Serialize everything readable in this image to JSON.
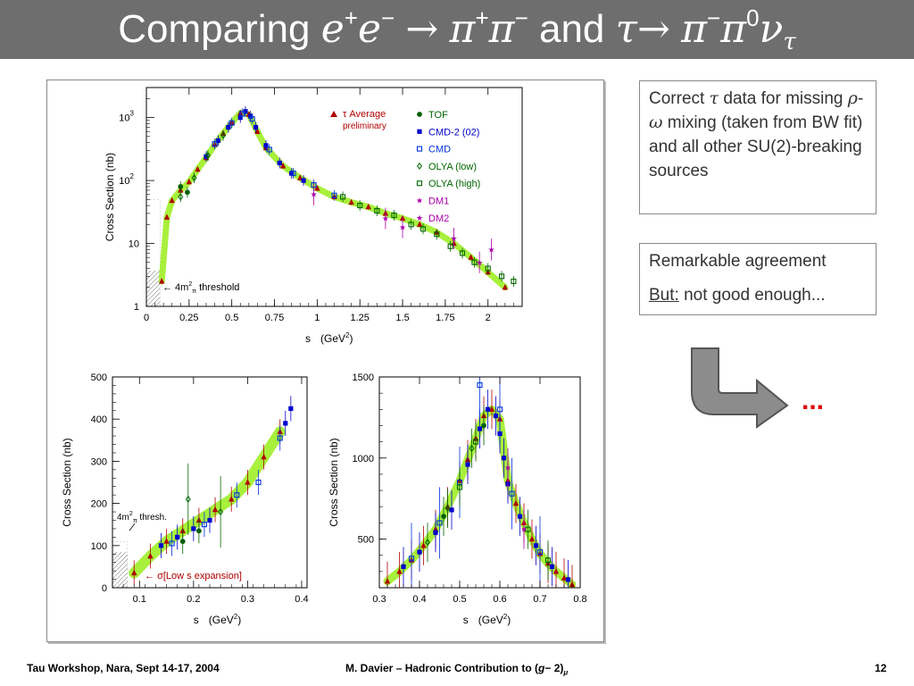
{
  "title": {
    "word1": "Comparing",
    "e": "e",
    "plus": "+",
    "minus": "−",
    "arrow": "→",
    "pi": "π",
    "and": "and",
    "tau": "τ",
    "zero": "0",
    "nu": "ν"
  },
  "note1": {
    "t1": "Correct ",
    "tau": "τ",
    "t2": " data for missing ",
    "rho": "ρ",
    "dash": "-",
    "omega": "ω",
    "t3": " mixing (taken from BW fit) and all other SU(2)-breaking sources"
  },
  "note2": {
    "line1": "Remarkable agreement",
    "but": "But:",
    "rest": " not good enough..."
  },
  "ellipsis": "...",
  "footer": {
    "left": "Tau Workshop, Nara, Sept 14-17, 2004",
    "center_text": "M. Davier – Hadronic Contribution to (",
    "g": "g",
    "minus2": "− 2)",
    "mu": "μ",
    "page": "12"
  },
  "colors": {
    "title_bar": "#6e6e6e",
    "tau": "#b00000",
    "tof": "#006000",
    "cmd2": "#0000cc",
    "cmd": "#0033dd",
    "olya_low": "#006600",
    "olya_high": "#006600",
    "dm1": "#aa00aa",
    "dm2": "#aa00aa",
    "band": "#a8f03c",
    "dots": "#e00000",
    "arrow": "#8c8c8c"
  },
  "chart_data": [
    {
      "type": "scatter",
      "ylabel": "Cross Section  (nb)",
      "xlabel_s": "s",
      "xlabel_unit": "(GeV",
      "xlabel_sup": "2",
      "xlabel_close": ")",
      "xlim": [
        0,
        2.2
      ],
      "ylim": [
        1,
        3000
      ],
      "yscale": "log",
      "xticks": [
        "0",
        "0.25",
        "0.5",
        "0.75",
        "1",
        "1.25",
        "1.5",
        "1.75",
        "2"
      ],
      "xtick_values": [
        0,
        0.25,
        0.5,
        0.75,
        1,
        1.25,
        1.5,
        1.75,
        2
      ],
      "yticks": [
        {
          "v": 1,
          "base": "1",
          "exp": ""
        },
        {
          "v": 10,
          "base": "10",
          "exp": ""
        },
        {
          "v": 100,
          "base": "10",
          "exp": "2"
        },
        {
          "v": 1000,
          "base": "10",
          "exp": "3"
        }
      ],
      "threshold_annotation": {
        "arrow": "←",
        "text1": " 4m",
        "sup": "2",
        "sub": "π",
        "text2": " threshold"
      },
      "legend": [
        {
          "marker": "tri",
          "label_pre": "τ",
          "label": " Average",
          "sub": "preliminary",
          "color": "#b00000"
        },
        {
          "marker": "dot",
          "label": "TOF",
          "color": "#006000"
        },
        {
          "marker": "sqf",
          "label": "CMD-2 (02)",
          "color": "#0000cc"
        },
        {
          "marker": "sqo",
          "label": "CMD",
          "color": "#0033dd"
        },
        {
          "marker": "dia",
          "label": "OLYA (low)",
          "color": "#006600"
        },
        {
          "marker": "sqo",
          "label": "OLYA (high)",
          "color": "#006600"
        },
        {
          "marker": "star",
          "label": "DM1",
          "color": "#aa00aa"
        },
        {
          "marker": "star",
          "label": "DM2",
          "color": "#aa00aa"
        }
      ],
      "series": [
        {
          "name": "τ Average",
          "marker": "tri",
          "color": "#b00000",
          "x": [
            0.09,
            0.12,
            0.15,
            0.2,
            0.25,
            0.3,
            0.35,
            0.4,
            0.45,
            0.5,
            0.55,
            0.6,
            0.65,
            0.7,
            0.8,
            0.9,
            1.0,
            1.1,
            1.2,
            1.3,
            1.4,
            1.5,
            1.6,
            1.7,
            1.8,
            1.9,
            2.0,
            2.1
          ],
          "y": [
            2.5,
            26,
            48,
            70,
            95,
            150,
            230,
            370,
            560,
            830,
            1180,
            1120,
            600,
            330,
            170,
            110,
            75,
            55,
            45,
            38,
            30,
            25,
            20,
            15,
            10,
            6,
            3.5,
            2
          ]
        },
        {
          "name": "CMD-2 (02)",
          "marker": "sqf",
          "color": "#0000cc",
          "x": [
            0.35,
            0.42,
            0.48,
            0.55,
            0.58,
            0.61,
            0.64,
            0.7,
            0.78,
            0.85,
            0.92
          ],
          "y": [
            240,
            430,
            700,
            1000,
            1250,
            1050,
            700,
            360,
            190,
            130,
            100
          ]
        },
        {
          "name": "CMD",
          "marker": "sqo",
          "color": "#0033dd",
          "x": [
            0.4,
            0.5,
            0.56,
            0.62,
            0.72,
            0.86,
            0.98,
            1.1
          ],
          "y": [
            380,
            820,
            1150,
            950,
            310,
            130,
            85,
            58
          ]
        },
        {
          "name": "OLYA (high)",
          "marker": "sqo",
          "color": "#006600",
          "x": [
            1.15,
            1.25,
            1.35,
            1.45,
            1.55,
            1.62,
            1.7,
            1.78,
            1.85,
            1.92,
            2.0,
            2.08,
            2.15
          ],
          "y": [
            55,
            40,
            33,
            28,
            20,
            17,
            14,
            9,
            7,
            5,
            4,
            3,
            2.5
          ]
        },
        {
          "name": "OLYA (low)",
          "marker": "dia",
          "color": "#006600",
          "x": [
            0.2,
            0.28,
            0.36,
            0.45
          ],
          "y": [
            55,
            110,
            250,
            520
          ]
        },
        {
          "name": "TOF",
          "marker": "dot",
          "color": "#006000",
          "x": [
            0.2,
            0.24
          ],
          "y": [
            80,
            65
          ]
        },
        {
          "name": "DM1",
          "marker": "star",
          "color": "#aa00aa",
          "x": [
            0.98,
            1.5,
            2.02
          ],
          "y": [
            60,
            18,
            8
          ]
        },
        {
          "name": "DM2",
          "marker": "star",
          "color": "#aa00aa",
          "x": [
            1.4,
            1.8,
            1.95
          ],
          "y": [
            25,
            12,
            5
          ]
        }
      ]
    },
    {
      "type": "scatter",
      "ylabel": "Cross Section  (nb)",
      "xlabel_s": "s",
      "xlabel_unit": "(GeV",
      "xlabel_sup": "2",
      "xlabel_close": ")",
      "xlim": [
        0.05,
        0.41
      ],
      "ylim": [
        0,
        500
      ],
      "xticks": [
        "0.1",
        "0.2",
        "0.3",
        "0.4"
      ],
      "xtick_values": [
        0.1,
        0.2,
        0.3,
        0.4
      ],
      "yticks": [
        "0",
        "100",
        "200",
        "300",
        "400",
        "500"
      ],
      "ytick_values": [
        0,
        100,
        200,
        300,
        400,
        500
      ],
      "thresh_annotation": {
        "text1": "4m",
        "sup": "2",
        "sub": "π",
        "text2": " thresh."
      },
      "sigma_annotation": {
        "arrow": "←",
        "sigma": "σ",
        "text": "[Low s expansion]"
      },
      "series": [
        {
          "name": "τ Average",
          "marker": "tri",
          "color": "#b00000",
          "x": [
            0.09,
            0.12,
            0.15,
            0.18,
            0.21,
            0.24,
            0.27,
            0.3,
            0.33,
            0.36
          ],
          "y": [
            35,
            75,
            110,
            135,
            160,
            185,
            210,
            250,
            310,
            370
          ]
        },
        {
          "name": "CMD-2 (02)",
          "marker": "sqf",
          "color": "#0000cc",
          "x": [
            0.14,
            0.17,
            0.2,
            0.23,
            0.37,
            0.38
          ],
          "y": [
            100,
            120,
            140,
            160,
            390,
            425
          ]
        },
        {
          "name": "CMD",
          "marker": "sqo",
          "color": "#0033dd",
          "x": [
            0.16,
            0.22,
            0.28,
            0.32,
            0.36
          ],
          "y": [
            105,
            150,
            220,
            250,
            355
          ]
        },
        {
          "name": "TOF",
          "marker": "dot",
          "color": "#006000",
          "x": [
            0.18,
            0.21
          ],
          "y": [
            110,
            135
          ]
        },
        {
          "name": "OLYA (low)",
          "marker": "dia",
          "color": "#006600",
          "x": [
            0.19,
            0.25
          ],
          "y": [
            210,
            180
          ]
        }
      ]
    },
    {
      "type": "scatter",
      "ylabel": "Cross Section  (nb)",
      "xlabel_s": "s",
      "xlabel_unit": "(GeV",
      "xlabel_sup": "2",
      "xlabel_close": ")",
      "xlim": [
        0.3,
        0.8
      ],
      "ylim": [
        200,
        1500
      ],
      "xticks": [
        "0.3",
        "0.4",
        "0.5",
        "0.6",
        "0.7",
        "0.8"
      ],
      "xtick_values": [
        0.3,
        0.4,
        0.5,
        0.6,
        0.7,
        0.8
      ],
      "yticks": [
        "500",
        "1000",
        "1500"
      ],
      "ytick_values": [
        500,
        1000,
        1500
      ],
      "series": [
        {
          "name": "τ Average",
          "marker": "tri",
          "color": "#b00000",
          "x": [
            0.32,
            0.35,
            0.38,
            0.41,
            0.44,
            0.47,
            0.5,
            0.52,
            0.54,
            0.56,
            0.58,
            0.6,
            0.62,
            0.64,
            0.66,
            0.68,
            0.7,
            0.72,
            0.74,
            0.76,
            0.78
          ],
          "y": [
            240,
            300,
            370,
            460,
            560,
            700,
            860,
            990,
            1120,
            1260,
            1300,
            1240,
            860,
            720,
            600,
            500,
            410,
            350,
            300,
            260,
            220
          ]
        },
        {
          "name": "CMD-2 (02)",
          "marker": "sqf",
          "color": "#0000cc",
          "x": [
            0.36,
            0.4,
            0.44,
            0.48,
            0.52,
            0.55,
            0.57,
            0.59,
            0.6,
            0.61,
            0.62,
            0.65,
            0.69,
            0.73,
            0.77
          ],
          "y": [
            330,
            420,
            540,
            680,
            960,
            1180,
            1300,
            1260,
            1150,
            1000,
            840,
            640,
            460,
            330,
            250
          ]
        },
        {
          "name": "CMD",
          "marker": "sqo",
          "color": "#0033dd",
          "x": [
            0.38,
            0.45,
            0.5,
            0.55,
            0.6,
            0.63,
            0.7
          ],
          "y": [
            380,
            600,
            850,
            1450,
            1300,
            780,
            420
          ]
        },
        {
          "name": "OLYA (low)",
          "marker": "dia",
          "color": "#006600",
          "x": [
            0.42,
            0.47,
            0.53
          ],
          "y": [
            480,
            690,
            1060
          ]
        },
        {
          "name": "OLYA (high)",
          "marker": "sqo",
          "color": "#006600",
          "x": [
            0.5,
            0.54,
            0.67,
            0.72
          ],
          "y": [
            820,
            1100,
            560,
            370
          ]
        },
        {
          "name": "TOF",
          "marker": "dot",
          "color": "#006000",
          "x": [
            0.46,
            0.56
          ],
          "y": [
            640,
            1200
          ]
        },
        {
          "name": "DM1",
          "marker": "star",
          "color": "#aa00aa",
          "x": [
            0.62,
            0.66
          ],
          "y": [
            940,
            560
          ]
        }
      ]
    }
  ]
}
